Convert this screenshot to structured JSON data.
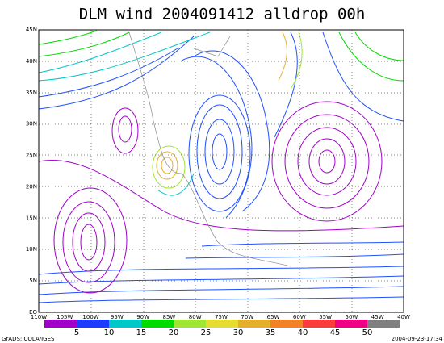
{
  "title": "DLM wind 2004091412 alldrop 00h",
  "lat_labels": [
    "EQ",
    "5N",
    "10N",
    "15N",
    "20N",
    "25N",
    "30N",
    "35N",
    "40N",
    "45N"
  ],
  "lon_labels": [
    "110W",
    "105W",
    "100W",
    "95W",
    "90W",
    "85W",
    "80W",
    "75W",
    "70W",
    "65W",
    "60W",
    "55W",
    "50W",
    "45W",
    "40W"
  ],
  "colorbar": {
    "labels": [
      "5",
      "10",
      "15",
      "20",
      "25",
      "30",
      "35",
      "40",
      "45",
      "50"
    ],
    "colors": [
      "#a000c8",
      "#1e3cff",
      "#00c8c8",
      "#00dc00",
      "#a0e632",
      "#e6dc32",
      "#e6af2d",
      "#f08228",
      "#fa3c3c",
      "#f00082",
      "#808080"
    ]
  },
  "footer": {
    "left": "GrADS: COLA/IGES",
    "right": "2004-09-23-17:34"
  }
}
